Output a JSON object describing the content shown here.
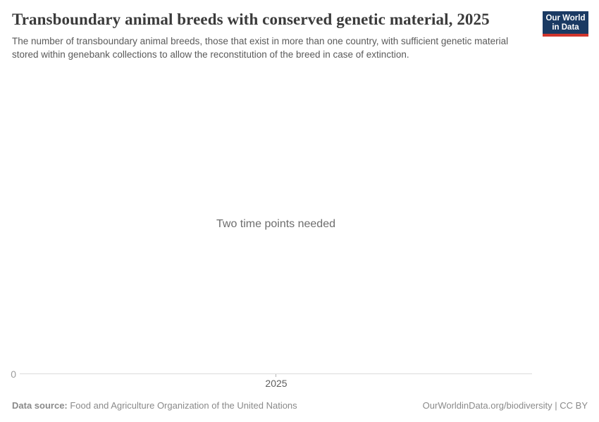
{
  "header": {
    "title": "Transboundary animal breeds with conserved genetic material, 2025",
    "subtitle": "The number of transboundary animal breeds, those that exist in more than one country, with sufficient genetic material stored within genebank collections to allow the reconstitution of the breed in case of extinction.",
    "logo": {
      "text_line1": "Our World",
      "text_line2": "in Data"
    }
  },
  "chart_data": {
    "type": "line",
    "title": "Transboundary animal breeds with conserved genetic material, 2025",
    "series": [],
    "empty_state_message": "Two time points needed",
    "x_ticks": [
      "2025"
    ],
    "y_ticks": [
      "0"
    ],
    "grid": false,
    "legend": false
  },
  "footer": {
    "source_label": "Data source:",
    "source_value": " Food and Agriculture Organization of the United Nations",
    "attribution": "OurWorldinData.org/biodiversity | CC BY"
  },
  "colors": {
    "title_text": "#3b3b3b",
    "subtitle_text": "#5a5a5a",
    "empty_message_text": "#6d6d6d",
    "axis_line": "#dcdcdc",
    "tick_mark": "#b5b5b5",
    "x_tick_label": "#5e5e5e",
    "y_tick_label": "#9c9c9c",
    "footer_text": "#8a8a8a",
    "logo_bg": "#1a3a63",
    "logo_accent": "#d0352c"
  }
}
